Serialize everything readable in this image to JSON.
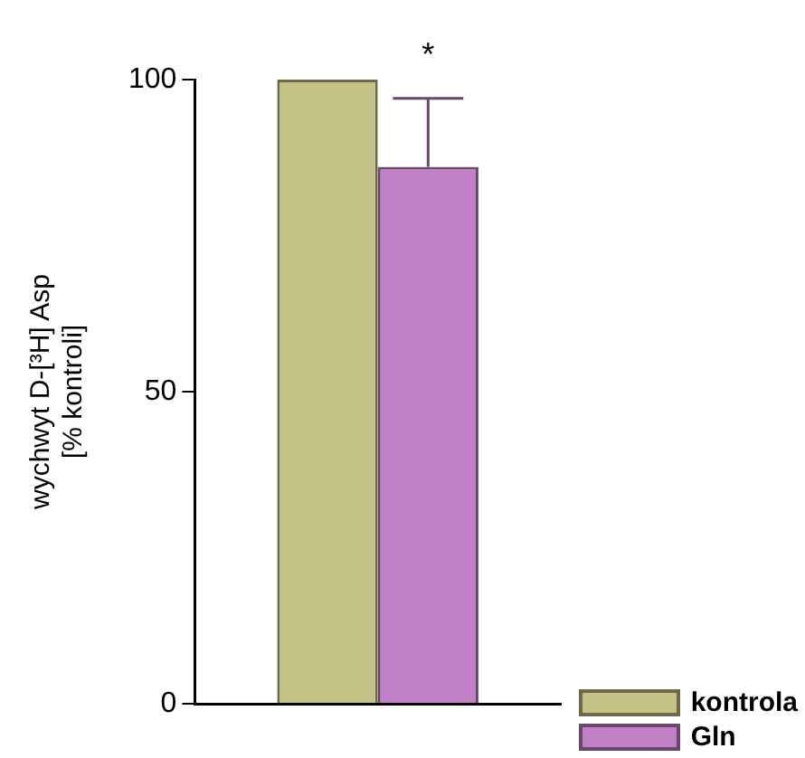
{
  "chart_data": {
    "type": "bar",
    "ylabel": "wychwyt D-[³H] Asp\n[% kontroli]",
    "categories": [
      null
    ],
    "series": [
      {
        "name": "kontrola",
        "color": "#c3c385",
        "values": [
          100
        ]
      },
      {
        "name": "Gln",
        "color": "#c17fc6",
        "values": [
          86
        ],
        "errors": [
          [
            86,
            97
          ]
        ]
      }
    ],
    "ylim": [
      0,
      100
    ],
    "yticks": [
      0,
      50,
      100
    ],
    "grid": false,
    "legend": "bottom right",
    "annotations": [
      "*"
    ]
  }
}
